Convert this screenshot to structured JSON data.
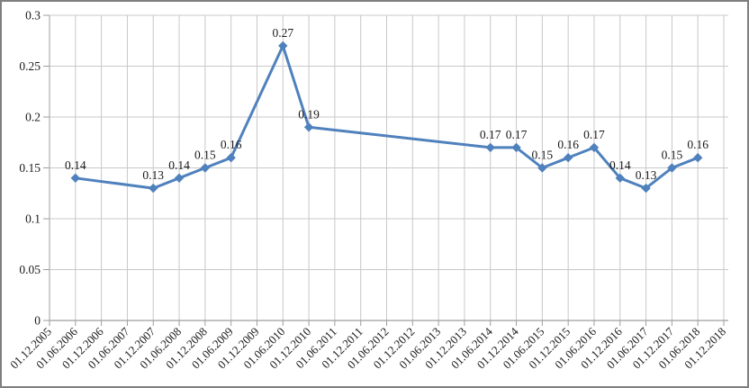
{
  "chart_data": {
    "type": "line",
    "title": "",
    "legend_position": "none",
    "grid": true,
    "marker": "diamond",
    "x_tick_rotation": -45,
    "categories": [
      "01.12.2005",
      "01.06.2006",
      "01.12.2006",
      "01.06.2007",
      "01.12.2007",
      "01.06.2008",
      "01.12.2008",
      "01.06.2009",
      "01.12.2009",
      "01.06.2010",
      "01.12.2010",
      "01.06.2011",
      "01.12.2011",
      "01.06.2012",
      "01.12.2012",
      "01.06.2013",
      "01.12.2013",
      "01.06.2014",
      "01.12.2014",
      "01.06.2015",
      "01.12.2015",
      "01.06.2016",
      "01.12.2016",
      "01.06.2017",
      "01.12.2017",
      "01.06.2018",
      "01.12.2018"
    ],
    "series": [
      {
        "name": "",
        "points": [
          {
            "category": "01.06.2006",
            "value": 0.14,
            "label": "0.14"
          },
          {
            "category": "01.12.2007",
            "value": 0.13,
            "label": "0.13"
          },
          {
            "category": "01.06.2008",
            "value": 0.14,
            "label": "0.14"
          },
          {
            "category": "01.12.2008",
            "value": 0.15,
            "label": "0.15"
          },
          {
            "category": "01.06.2009",
            "value": 0.16,
            "label": "0.16"
          },
          {
            "category": "01.06.2010",
            "value": 0.27,
            "label": "0.27"
          },
          {
            "category": "01.12.2010",
            "value": 0.19,
            "label": "0.19"
          },
          {
            "category": "01.06.2014",
            "value": 0.17,
            "label": "0.17"
          },
          {
            "category": "01.12.2014",
            "value": 0.17,
            "label": "0.17"
          },
          {
            "category": "01.06.2015",
            "value": 0.15,
            "label": "0.15"
          },
          {
            "category": "01.12.2015",
            "value": 0.16,
            "label": "0.16"
          },
          {
            "category": "01.06.2016",
            "value": 0.17,
            "label": "0.17"
          },
          {
            "category": "01.12.2016",
            "value": 0.14,
            "label": "0.14"
          },
          {
            "category": "01.06.2017",
            "value": 0.13,
            "label": "0.13"
          },
          {
            "category": "01.12.2017",
            "value": 0.15,
            "label": "0.15"
          },
          {
            "category": "01.06.2018",
            "value": 0.16,
            "label": "0.16"
          }
        ]
      }
    ],
    "y_ticks": [
      "0",
      "0.05",
      "0.1",
      "0.15",
      "0.2",
      "0.25",
      "0.3"
    ],
    "ylim": [
      0,
      0.3
    ],
    "xlabel": "",
    "ylabel": "",
    "colors": {
      "line": "#4F81BD",
      "marker": "#4F81BD",
      "gridline": "#C8C8C8",
      "axis": "#9E9E9E",
      "text": "#1A1A1A",
      "background": "#FFFFFF",
      "chart_border": "#7F7F7F"
    }
  }
}
